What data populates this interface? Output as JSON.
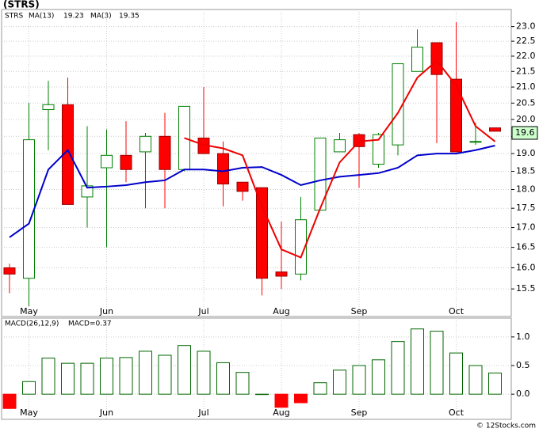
{
  "chart_data": [
    {
      "type": "candlestick",
      "title": "(STRS)",
      "symbol": "STRS",
      "symbol_color": "#008000",
      "categories": [
        null,
        "May",
        null,
        null,
        null,
        "Jun",
        null,
        null,
        null,
        null,
        "Jul",
        null,
        null,
        null,
        "Aug",
        null,
        null,
        null,
        "Sep",
        null,
        null,
        null,
        null,
        "Oct",
        null,
        null
      ],
      "open": [
        16.0,
        15.75,
        20.3,
        20.45,
        17.8,
        18.6,
        18.95,
        19.05,
        19.5,
        18.55,
        19.45,
        19.0,
        18.2,
        18.05,
        15.9,
        15.85,
        17.45,
        19.05,
        19.55,
        18.7,
        19.25,
        21.5,
        22.45,
        21.25,
        19.35,
        19.75
      ],
      "high": [
        16.1,
        20.5,
        21.2,
        21.3,
        19.8,
        19.7,
        19.95,
        19.6,
        20.2,
        20.4,
        21.0,
        19.35,
        18.2,
        18.05,
        17.15,
        17.8,
        19.45,
        19.6,
        19.6,
        19.6,
        21.75,
        22.9,
        22.45,
        23.15,
        19.9,
        19.75
      ],
      "low": [
        15.4,
        15.1,
        19.1,
        17.6,
        17.0,
        16.5,
        18.2,
        17.5,
        17.5,
        18.5,
        19.0,
        17.55,
        17.7,
        15.35,
        15.5,
        15.7,
        17.45,
        19.05,
        18.05,
        18.6,
        18.95,
        21.5,
        19.3,
        19.05,
        19.25,
        19.65
      ],
      "close": [
        15.85,
        19.4,
        20.45,
        17.6,
        18.1,
        18.95,
        18.55,
        19.5,
        18.55,
        20.4,
        19.0,
        18.15,
        17.95,
        15.75,
        15.8,
        17.2,
        19.45,
        19.4,
        19.2,
        19.55,
        21.75,
        22.3,
        21.4,
        19.05,
        19.35,
        19.65
      ],
      "up_color": "#008000",
      "down_color": "#ff0000",
      "series": [
        {
          "name": "MA(13)",
          "legend_value": 19.23,
          "color": "#0000cc",
          "values": [
            16.75,
            17.1,
            18.55,
            19.1,
            18.05,
            18.08,
            18.12,
            18.2,
            18.25,
            18.55,
            18.55,
            18.5,
            18.6,
            18.62,
            18.4,
            18.12,
            18.25,
            18.35,
            18.4,
            18.45,
            18.6,
            18.95,
            19.0,
            19.0,
            19.1,
            19.23
          ]
        },
        {
          "name": "MA(3)",
          "legend_value": 19.35,
          "color": "#ee0000",
          "values": [
            null,
            null,
            null,
            null,
            null,
            null,
            null,
            null,
            null,
            19.45,
            19.25,
            19.15,
            18.95,
            17.55,
            16.45,
            16.25,
            17.5,
            18.75,
            19.35,
            19.4,
            20.2,
            21.3,
            21.85,
            21.05,
            19.8,
            19.35
          ]
        }
      ],
      "last_price": 19.6,
      "log_scale": true,
      "grid": true,
      "ylim": [
        14.87,
        23.6
      ],
      "yticks": [
        {
          "value": 15.5,
          "label": "15.5"
        },
        {
          "value": 16,
          "label": "16.0"
        },
        {
          "value": 16.5,
          "label": "16.5"
        },
        {
          "value": 17,
          "label": "17.0"
        },
        {
          "value": 17.5,
          "label": "17.5"
        },
        {
          "value": 18,
          "label": "18.0"
        },
        {
          "value": 18.5,
          "label": "18.5"
        },
        {
          "value": 19,
          "label": "19.0"
        },
        {
          "value": 19.5,
          "label": "19.5"
        },
        {
          "value": 20,
          "label": "20.0"
        },
        {
          "value": 20.5,
          "label": "20.5"
        },
        {
          "value": 21,
          "label": "21.0"
        },
        {
          "value": 21.5,
          "label": "21.5"
        },
        {
          "value": 22,
          "label": "22.0"
        },
        {
          "value": 22.5,
          "label": "22.5"
        },
        {
          "value": 23,
          "label": "23.0"
        }
      ]
    },
    {
      "type": "bar",
      "title": "MACD(26,12,9)",
      "legend": "MACD=0.37",
      "categories": [
        null,
        "May",
        null,
        null,
        null,
        "Jun",
        null,
        null,
        null,
        null,
        "Jul",
        null,
        null,
        null,
        "Aug",
        null,
        null,
        null,
        "Sep",
        null,
        null,
        null,
        null,
        "Oct",
        null,
        null
      ],
      "values": [
        -0.25,
        0.22,
        0.63,
        0.54,
        0.54,
        0.63,
        0.64,
        0.75,
        0.68,
        0.85,
        0.75,
        0.55,
        0.38,
        0.0,
        -0.23,
        -0.15,
        0.2,
        0.42,
        0.5,
        0.6,
        0.92,
        1.14,
        1.1,
        0.72,
        0.5,
        0.37
      ],
      "color": "#006600",
      "negative_color": "#ff0000",
      "grid": true,
      "ylim": [
        -0.44,
        1.33
      ],
      "yticks": [
        {
          "value": 0,
          "label": "0.0"
        },
        {
          "value": 0.5,
          "label": "0.5"
        },
        {
          "value": 1,
          "label": "1.0"
        }
      ]
    }
  ],
  "footer": "© 12Stocks.com"
}
